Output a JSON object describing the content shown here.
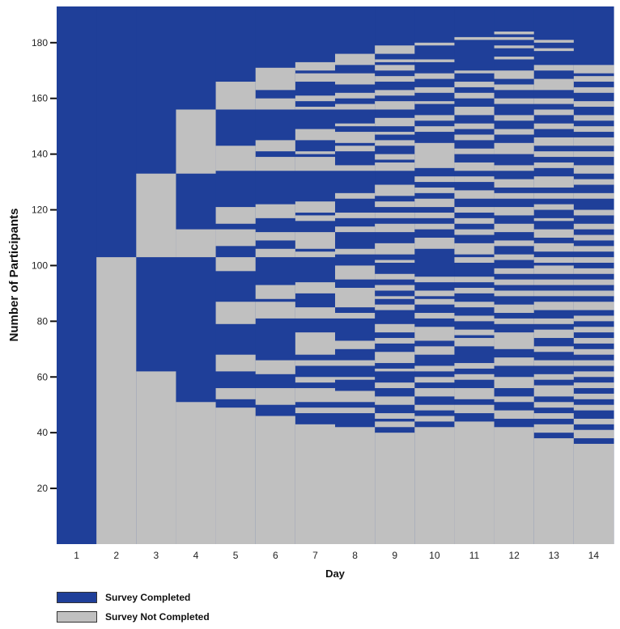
{
  "chart_data": {
    "type": "heatmap",
    "xlabel": "Day",
    "ylabel": "Number of Participants",
    "categories": [
      "1",
      "2",
      "3",
      "4",
      "5",
      "6",
      "7",
      "8",
      "9",
      "10",
      "11",
      "12",
      "13",
      "14"
    ],
    "y_ticks": [
      20,
      40,
      60,
      80,
      100,
      120,
      140,
      160,
      180
    ],
    "ylim": [
      0,
      193
    ],
    "colors": {
      "completed": "#1f3f99",
      "not_completed": "#c0c0c0"
    },
    "legend": [
      {
        "label": "Survey Completed",
        "color": "#1f3f99"
      },
      {
        "label": "Survey Not Completed",
        "color": "#c0c0c0"
      }
    ],
    "series": [
      {
        "day": "1",
        "participants": 193,
        "not_completed_blocks": []
      },
      {
        "day": "2",
        "participants": 193,
        "not_completed_blocks": [
          [
            0,
            103
          ]
        ]
      },
      {
        "day": "3",
        "participants": 193,
        "not_completed_blocks": [
          [
            0,
            62
          ],
          [
            103,
            133
          ]
        ]
      },
      {
        "day": "4",
        "participants": 193,
        "not_completed_blocks": [
          [
            0,
            51
          ],
          [
            103,
            113
          ],
          [
            133,
            156
          ]
        ]
      },
      {
        "day": "5",
        "participants": 193,
        "not_completed_blocks": [
          [
            0,
            49
          ],
          [
            52,
            56
          ],
          [
            62,
            68
          ],
          [
            79,
            87
          ],
          [
            98,
            103
          ],
          [
            107,
            113
          ],
          [
            115,
            121
          ],
          [
            134,
            143
          ],
          [
            156,
            166
          ]
        ]
      },
      {
        "day": "6",
        "participants": 193,
        "not_completed_blocks": [
          [
            0,
            46
          ],
          [
            50,
            56
          ],
          [
            61,
            66
          ],
          [
            81,
            87
          ],
          [
            88,
            93
          ],
          [
            103,
            106
          ],
          [
            109,
            112
          ],
          [
            117,
            122
          ],
          [
            134,
            139
          ],
          [
            141,
            145
          ],
          [
            156,
            160
          ],
          [
            163,
            171
          ]
        ]
      },
      {
        "day": "7",
        "participants": 193,
        "not_completed_blocks": [
          [
            0,
            43
          ],
          [
            47,
            49
          ],
          [
            51,
            56
          ],
          [
            58,
            60
          ],
          [
            64,
            66
          ],
          [
            68,
            76
          ],
          [
            81,
            85
          ],
          [
            90,
            94
          ],
          [
            103,
            105
          ],
          [
            106,
            112
          ],
          [
            116,
            118
          ],
          [
            119,
            123
          ],
          [
            134,
            139
          ],
          [
            140,
            141
          ],
          [
            145,
            149
          ],
          [
            156,
            157
          ],
          [
            159,
            161
          ],
          [
            166,
            169
          ],
          [
            170,
            173
          ]
        ]
      },
      {
        "day": "8",
        "participants": 193,
        "not_completed_blocks": [
          [
            0,
            42
          ],
          [
            47,
            49
          ],
          [
            51,
            55
          ],
          [
            59,
            60
          ],
          [
            64,
            66
          ],
          [
            70,
            73
          ],
          [
            81,
            83
          ],
          [
            85,
            92
          ],
          [
            95,
            100
          ],
          [
            104,
            106
          ],
          [
            112,
            114
          ],
          [
            117,
            119
          ],
          [
            124,
            126
          ],
          [
            134,
            136
          ],
          [
            141,
            143
          ],
          [
            144,
            148
          ],
          [
            150,
            151
          ],
          [
            156,
            158
          ],
          [
            160,
            162
          ],
          [
            165,
            169
          ],
          [
            172,
            176
          ]
        ]
      },
      {
        "day": "9",
        "participants": 193,
        "not_completed_blocks": [
          [
            0,
            40
          ],
          [
            42,
            44
          ],
          [
            45,
            47
          ],
          [
            50,
            53
          ],
          [
            56,
            58
          ],
          [
            62,
            63
          ],
          [
            65,
            69
          ],
          [
            72,
            74
          ],
          [
            76,
            79
          ],
          [
            84,
            86
          ],
          [
            88,
            89
          ],
          [
            91,
            93
          ],
          [
            95,
            97
          ],
          [
            101,
            102
          ],
          [
            104,
            108
          ],
          [
            112,
            115
          ],
          [
            117,
            119
          ],
          [
            121,
            123
          ],
          [
            125,
            129
          ],
          [
            134,
            137
          ],
          [
            138,
            140
          ],
          [
            143,
            145
          ],
          [
            147,
            148
          ],
          [
            150,
            153
          ],
          [
            156,
            159
          ],
          [
            161,
            163
          ],
          [
            166,
            168
          ],
          [
            170,
            172
          ],
          [
            173,
            174
          ],
          [
            176,
            179
          ]
        ]
      },
      {
        "day": "10",
        "participants": 193,
        "not_completed_blocks": [
          [
            0,
            42
          ],
          [
            44,
            46
          ],
          [
            48,
            50
          ],
          [
            53,
            56
          ],
          [
            58,
            60
          ],
          [
            62,
            64
          ],
          [
            68,
            71
          ],
          [
            73,
            78
          ],
          [
            81,
            83
          ],
          [
            86,
            88
          ],
          [
            89,
            91
          ],
          [
            94,
            96
          ],
          [
            106,
            110
          ],
          [
            113,
            115
          ],
          [
            117,
            119
          ],
          [
            121,
            124
          ],
          [
            126,
            128
          ],
          [
            130,
            132
          ],
          [
            135,
            144
          ],
          [
            148,
            150
          ],
          [
            152,
            154
          ],
          [
            158,
            159
          ],
          [
            162,
            164
          ],
          [
            167,
            169
          ],
          [
            173,
            174
          ],
          [
            179,
            180
          ]
        ]
      },
      {
        "day": "11",
        "participants": 193,
        "not_completed_blocks": [
          [
            0,
            44
          ],
          [
            47,
            50
          ],
          [
            52,
            56
          ],
          [
            59,
            61
          ],
          [
            63,
            65
          ],
          [
            71,
            74
          ],
          [
            75,
            77
          ],
          [
            80,
            82
          ],
          [
            85,
            87
          ],
          [
            90,
            92
          ],
          [
            94,
            96
          ],
          [
            101,
            103
          ],
          [
            104,
            108
          ],
          [
            111,
            113
          ],
          [
            115,
            117
          ],
          [
            119,
            121
          ],
          [
            124,
            127
          ],
          [
            130,
            132
          ],
          [
            134,
            137
          ],
          [
            140,
            142
          ],
          [
            145,
            147
          ],
          [
            149,
            151
          ],
          [
            154,
            157
          ],
          [
            160,
            162
          ],
          [
            164,
            166
          ],
          [
            169,
            170
          ],
          [
            181,
            182
          ]
        ]
      },
      {
        "day": "12",
        "participants": 193,
        "not_completed_blocks": [
          [
            0,
            42
          ],
          [
            45,
            48
          ],
          [
            51,
            53
          ],
          [
            56,
            60
          ],
          [
            64,
            67
          ],
          [
            70,
            76
          ],
          [
            79,
            81
          ],
          [
            83,
            86
          ],
          [
            89,
            91
          ],
          [
            93,
            95
          ],
          [
            97,
            99
          ],
          [
            102,
            104
          ],
          [
            107,
            109
          ],
          [
            112,
            115
          ],
          [
            118,
            121
          ],
          [
            124,
            126
          ],
          [
            128,
            131
          ],
          [
            134,
            136
          ],
          [
            140,
            144
          ],
          [
            147,
            149
          ],
          [
            152,
            154
          ],
          [
            158,
            160
          ],
          [
            163,
            165
          ],
          [
            167,
            170
          ],
          [
            174,
            175
          ],
          [
            178,
            179
          ],
          [
            181,
            182
          ],
          [
            183,
            184
          ]
        ]
      },
      {
        "day": "13",
        "participants": 193,
        "not_completed_blocks": [
          [
            0,
            38
          ],
          [
            40,
            43
          ],
          [
            45,
            47
          ],
          [
            49,
            51
          ],
          [
            53,
            57
          ],
          [
            59,
            61
          ],
          [
            64,
            66
          ],
          [
            69,
            71
          ],
          [
            74,
            77
          ],
          [
            79,
            81
          ],
          [
            84,
            87
          ],
          [
            89,
            91
          ],
          [
            93,
            95
          ],
          [
            97,
            100
          ],
          [
            101,
            103
          ],
          [
            105,
            108
          ],
          [
            110,
            113
          ],
          [
            116,
            117
          ],
          [
            120,
            122
          ],
          [
            124,
            126
          ],
          [
            128,
            132
          ],
          [
            135,
            137
          ],
          [
            139,
            141
          ],
          [
            143,
            146
          ],
          [
            149,
            151
          ],
          [
            154,
            156
          ],
          [
            158,
            160
          ],
          [
            163,
            167
          ],
          [
            170,
            172
          ],
          [
            177,
            178
          ],
          [
            180,
            181
          ]
        ]
      },
      {
        "day": "14",
        "participants": 193,
        "not_completed_blocks": [
          [
            0,
            36
          ],
          [
            38,
            41
          ],
          [
            43,
            45
          ],
          [
            48,
            50
          ],
          [
            52,
            54
          ],
          [
            56,
            58
          ],
          [
            60,
            62
          ],
          [
            64,
            66
          ],
          [
            68,
            70
          ],
          [
            72,
            74
          ],
          [
            76,
            78
          ],
          [
            80,
            82
          ],
          [
            84,
            87
          ],
          [
            89,
            91
          ],
          [
            93,
            95
          ],
          [
            97,
            99
          ],
          [
            101,
            103
          ],
          [
            105,
            107
          ],
          [
            109,
            111
          ],
          [
            113,
            115
          ],
          [
            118,
            120
          ],
          [
            124,
            126
          ],
          [
            129,
            131
          ],
          [
            133,
            136
          ],
          [
            139,
            141
          ],
          [
            143,
            146
          ],
          [
            148,
            150
          ],
          [
            152,
            154
          ],
          [
            157,
            159
          ],
          [
            162,
            164
          ],
          [
            166,
            168
          ],
          [
            169,
            172
          ]
        ]
      }
    ]
  }
}
